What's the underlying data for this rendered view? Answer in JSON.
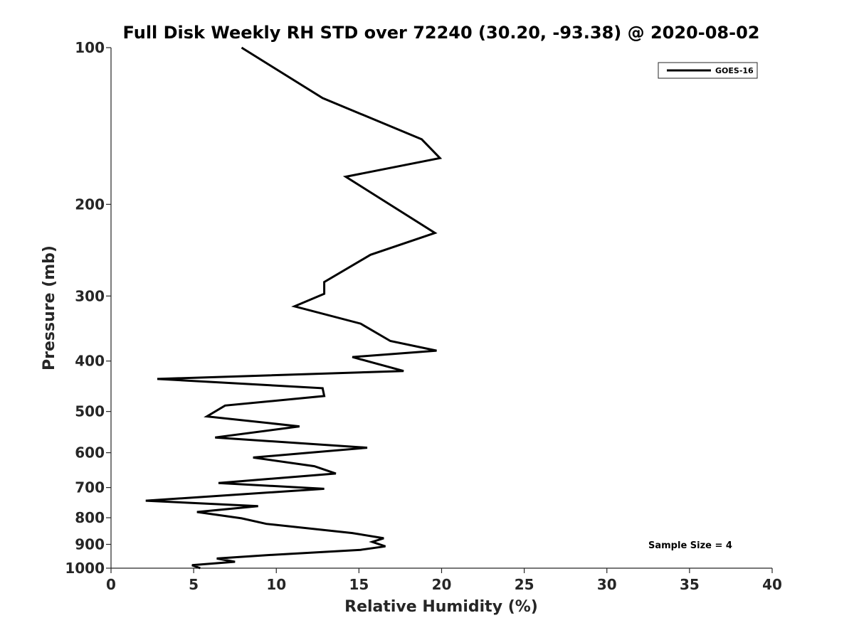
{
  "chart_data": {
    "type": "line",
    "title": "Full Disk Weekly RH STD over 72240 (30.20, -93.38) @ 2020-08-02",
    "xlabel": "Relative Humidity (%)",
    "ylabel": "Pressure (mb)",
    "xlim": [
      0,
      40
    ],
    "ylim": [
      100,
      1000
    ],
    "y_scale": "log",
    "y_inverted": true,
    "xticks": [
      0,
      5,
      10,
      15,
      20,
      25,
      30,
      35,
      40
    ],
    "xtick_labels": [
      "0",
      "5",
      "10",
      "15",
      "20",
      "25",
      "30",
      "35",
      "40"
    ],
    "yticks": [
      100,
      200,
      300,
      400,
      500,
      600,
      700,
      800,
      900,
      1000
    ],
    "ytick_labels": [
      "100",
      "200",
      "300",
      "400",
      "500",
      "600",
      "700",
      "800",
      "900",
      "1000"
    ],
    "grid": false,
    "legend_position": "top-right",
    "annotation": "Sample Size = 4",
    "series": [
      {
        "name": "GOES-16",
        "color": "#000000",
        "x": [
          7.9,
          12.8,
          18.8,
          19.9,
          14.2,
          19.6,
          15.7,
          12.9,
          12.9,
          11.1,
          15.1,
          16.9,
          19.7,
          14.6,
          17.7,
          2.8,
          12.8,
          12.9,
          6.9,
          5.8,
          11.4,
          6.3,
          15.5,
          8.6,
          12.3,
          13.6,
          6.5,
          12.9,
          2.1,
          8.9,
          5.2,
          7.9,
          9.4,
          14.6,
          16.5,
          15.8,
          16.6,
          15.1,
          9.4,
          6.4,
          7.5,
          4.9,
          5.4
        ],
        "y": [
          100,
          125,
          150,
          163,
          177,
          227,
          250,
          282,
          297,
          314,
          339,
          366,
          382,
          393,
          418,
          433,
          451,
          467,
          487,
          511,
          534,
          561,
          587,
          613,
          637,
          658,
          686,
          704,
          742,
          760,
          780,
          802,
          822,
          856,
          876,
          890,
          908,
          922,
          944,
          958,
          972,
          987,
          1000
        ]
      }
    ]
  }
}
